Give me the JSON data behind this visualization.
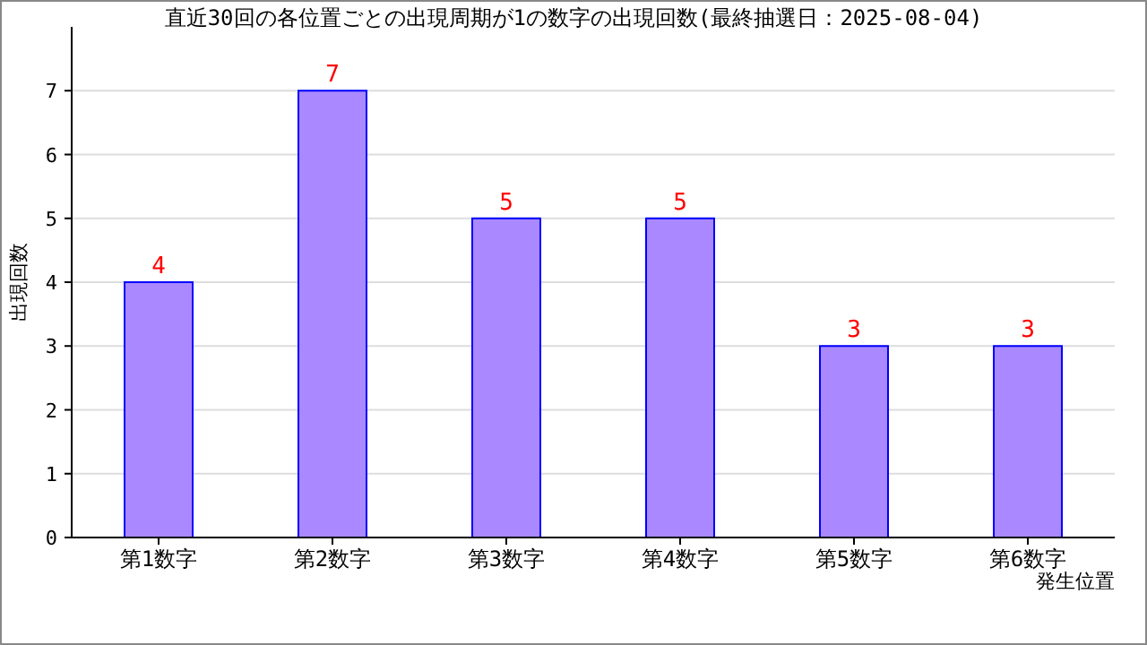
{
  "chart_data": {
    "type": "bar",
    "title": "直近30回の各位置ごとの出現周期が1の数字の出現回数(最終抽選日：2025-08-04)",
    "xlabel": "発生位置",
    "ylabel": "出現回数",
    "categories": [
      "第1数字",
      "第2数字",
      "第3数字",
      "第4数字",
      "第5数字",
      "第6数字"
    ],
    "values": [
      4,
      7,
      5,
      5,
      3,
      3
    ],
    "color": "#aa88ff",
    "ylim": [
      0,
      8
    ],
    "yticks": [
      0,
      1,
      2,
      3,
      4,
      5,
      6,
      7
    ],
    "grid": "y",
    "data_labels": true
  }
}
